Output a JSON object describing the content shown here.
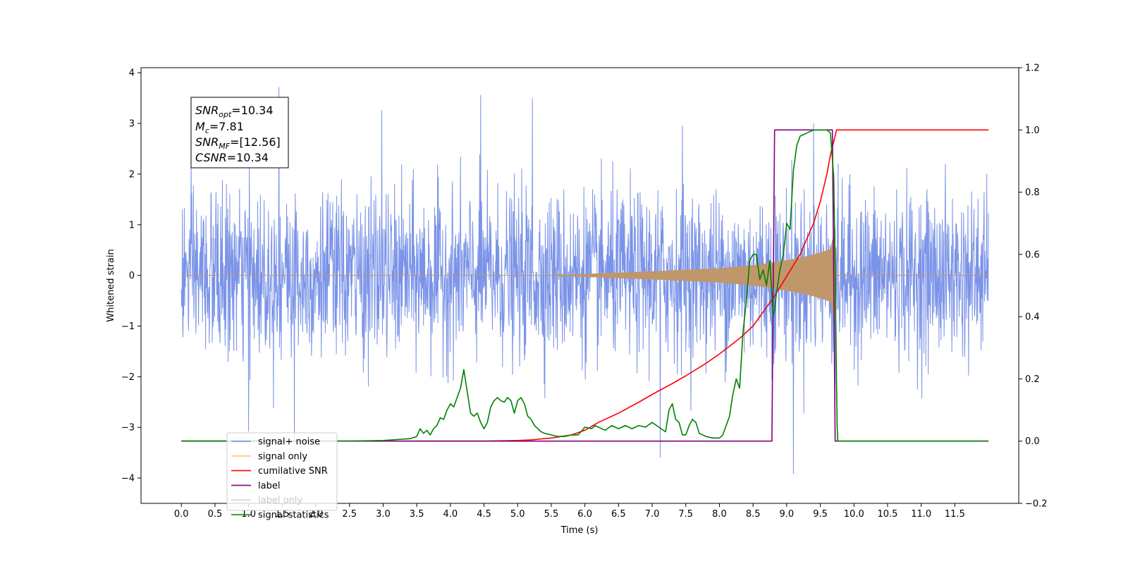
{
  "chart_data": {
    "type": "line",
    "xlabel": "Time (s)",
    "ylabel": "Whitened strain",
    "xlim": [
      -0.6,
      12.45
    ],
    "ylim": [
      -4.5,
      4.1
    ],
    "y2lim": [
      -0.2,
      1.2
    ],
    "grid": false,
    "legend_position": "bottom-left",
    "x_ticks": [
      "0.0",
      "0.5",
      "1.0",
      "1.5",
      "2.0",
      "2.5",
      "3.0",
      "3.5",
      "4.0",
      "4.5",
      "5.0",
      "5.5",
      "6.0",
      "6.5",
      "7.0",
      "7.5",
      "8.0",
      "8.5",
      "9.0",
      "9.5",
      "10.0",
      "10.5",
      "11.0",
      "11.5"
    ],
    "y_ticks": [
      "4",
      "3",
      "2",
      "1",
      "0",
      "−1",
      "−2",
      "−3",
      "−4"
    ],
    "y2_ticks": [
      "1.2",
      "1.0",
      "0.8",
      "0.6",
      "0.4",
      "0.2",
      "0.0",
      "−0.2"
    ],
    "annotation": {
      "snr_opt_pre": "SNR",
      "snr_opt_sub": "opt",
      "snr_opt_val": "=10.34",
      "mc_pre": "M",
      "mc_sub": "c",
      "mc_val": "=7.81",
      "snr_mf_pre": "SNR",
      "snr_mf_sub": "MF",
      "snr_mf_val": "=[12.56]",
      "csnr_pre": "CSNR",
      "csnr_val": "=10.34"
    },
    "legend": [
      {
        "label": "signal+ noise",
        "color": "#6b87e6"
      },
      {
        "label": "signal only",
        "color": "#ffc36b"
      },
      {
        "label": "cumilative SNR",
        "color": "#ff0000"
      },
      {
        "label": "label",
        "color": "#800080"
      },
      {
        "label": "label only",
        "color": "#d3d3d3"
      },
      {
        "label": "signal statistics",
        "color": "#008000"
      }
    ],
    "series": [
      {
        "name": "signal+ noise",
        "axis": "left",
        "color": "#6b87e6",
        "x_range": [
          0.0,
          12.0
        ],
        "typical_amplitude": 1.3,
        "peaks": [
          [
            1.45,
            3.72
          ],
          [
            4.45,
            3.56
          ],
          [
            5.22,
            3.5
          ],
          [
            2.98,
            3.26
          ],
          [
            9.4,
            3.0
          ],
          [
            7.45,
            2.95
          ],
          [
            9.1,
            -3.92
          ],
          [
            1.0,
            -3.08
          ],
          [
            7.12,
            -3.6
          ],
          [
            1.68,
            -3.3
          ],
          [
            9.72,
            -2.5
          ]
        ]
      },
      {
        "name": "signal only",
        "axis": "left",
        "color": "#c0976b",
        "x_range": [
          0.0,
          12.0
        ],
        "merger_time": 9.74,
        "envelope": [
          [
            0.0,
            0.0
          ],
          [
            5.5,
            0.0
          ],
          [
            6.0,
            0.03
          ],
          [
            7.0,
            0.08
          ],
          [
            8.0,
            0.14
          ],
          [
            8.5,
            0.2
          ],
          [
            9.0,
            0.3
          ],
          [
            9.3,
            0.38
          ],
          [
            9.5,
            0.45
          ],
          [
            9.65,
            0.52
          ],
          [
            9.72,
            0.95
          ],
          [
            9.74,
            0.0
          ],
          [
            12.0,
            0.0
          ]
        ]
      },
      {
        "name": "cumilative SNR",
        "axis": "right",
        "color": "#ff0000",
        "x": [
          0.0,
          4.5,
          5.0,
          5.2,
          5.5,
          5.8,
          6.0,
          6.2,
          6.5,
          6.8,
          7.0,
          7.3,
          7.5,
          7.8,
          8.0,
          8.3,
          8.5,
          8.8,
          9.0,
          9.2,
          9.4,
          9.5,
          9.6,
          9.65,
          9.72,
          9.74,
          11.0,
          12.0
        ],
        "y": [
          0.0,
          0.0,
          0.002,
          0.004,
          0.01,
          0.02,
          0.035,
          0.06,
          0.09,
          0.125,
          0.15,
          0.185,
          0.21,
          0.25,
          0.28,
          0.33,
          0.37,
          0.46,
          0.53,
          0.6,
          0.7,
          0.77,
          0.86,
          0.92,
          0.98,
          1.0,
          1.0,
          1.0
        ]
      },
      {
        "name": "label",
        "axis": "right",
        "color": "#800080",
        "x": [
          0.0,
          8.78,
          8.82,
          9.68,
          9.72,
          12.0
        ],
        "y": [
          0.0,
          0.0,
          1.0,
          1.0,
          0.0,
          0.0
        ]
      },
      {
        "name": "signal statistics",
        "axis": "right",
        "color": "#008000",
        "x": [
          0.0,
          1.5,
          2.5,
          3.0,
          3.2,
          3.4,
          3.5,
          3.55,
          3.6,
          3.65,
          3.7,
          3.75,
          3.8,
          3.85,
          3.9,
          3.95,
          4.0,
          4.05,
          4.1,
          4.15,
          4.2,
          4.25,
          4.3,
          4.35,
          4.4,
          4.45,
          4.5,
          4.55,
          4.6,
          4.65,
          4.7,
          4.75,
          4.8,
          4.85,
          4.9,
          4.95,
          5.0,
          5.05,
          5.1,
          5.15,
          5.2,
          5.25,
          5.3,
          5.35,
          5.4,
          5.5,
          5.6,
          5.7,
          5.8,
          5.9,
          6.0,
          6.1,
          6.15,
          6.2,
          6.3,
          6.4,
          6.5,
          6.6,
          6.7,
          6.8,
          6.9,
          7.0,
          7.1,
          7.2,
          7.25,
          7.3,
          7.35,
          7.4,
          7.45,
          7.5,
          7.55,
          7.6,
          7.65,
          7.7,
          7.8,
          7.9,
          8.0,
          8.05,
          8.1,
          8.15,
          8.2,
          8.25,
          8.3,
          8.35,
          8.4,
          8.45,
          8.5,
          8.55,
          8.6,
          8.65,
          8.7,
          8.75,
          8.8,
          8.82,
          8.85,
          8.9,
          8.95,
          9.0,
          9.05,
          9.1,
          9.15,
          9.2,
          9.3,
          9.4,
          9.5,
          9.6,
          9.65,
          9.7,
          9.72,
          9.74,
          9.75,
          9.76,
          12.0
        ],
        "y": [
          0.0,
          0.0,
          0.0,
          0.002,
          0.005,
          0.008,
          0.015,
          0.04,
          0.025,
          0.035,
          0.02,
          0.04,
          0.05,
          0.075,
          0.07,
          0.1,
          0.12,
          0.11,
          0.14,
          0.17,
          0.23,
          0.16,
          0.09,
          0.08,
          0.09,
          0.06,
          0.04,
          0.06,
          0.11,
          0.13,
          0.14,
          0.13,
          0.125,
          0.14,
          0.13,
          0.09,
          0.13,
          0.14,
          0.12,
          0.08,
          0.07,
          0.05,
          0.04,
          0.03,
          0.025,
          0.02,
          0.015,
          0.015,
          0.02,
          0.02,
          0.045,
          0.04,
          0.05,
          0.045,
          0.035,
          0.05,
          0.04,
          0.05,
          0.04,
          0.05,
          0.045,
          0.06,
          0.045,
          0.03,
          0.1,
          0.12,
          0.07,
          0.06,
          0.02,
          0.02,
          0.05,
          0.07,
          0.06,
          0.025,
          0.015,
          0.01,
          0.01,
          0.02,
          0.05,
          0.08,
          0.15,
          0.2,
          0.17,
          0.35,
          0.45,
          0.58,
          0.6,
          0.6,
          0.52,
          0.55,
          0.5,
          0.58,
          0.4,
          0.42,
          0.48,
          0.55,
          0.6,
          0.7,
          0.68,
          0.87,
          0.95,
          0.98,
          0.99,
          1.0,
          1.0,
          1.0,
          0.99,
          0.85,
          0.55,
          0.2,
          0.05,
          0.0,
          0.0
        ]
      }
    ]
  }
}
